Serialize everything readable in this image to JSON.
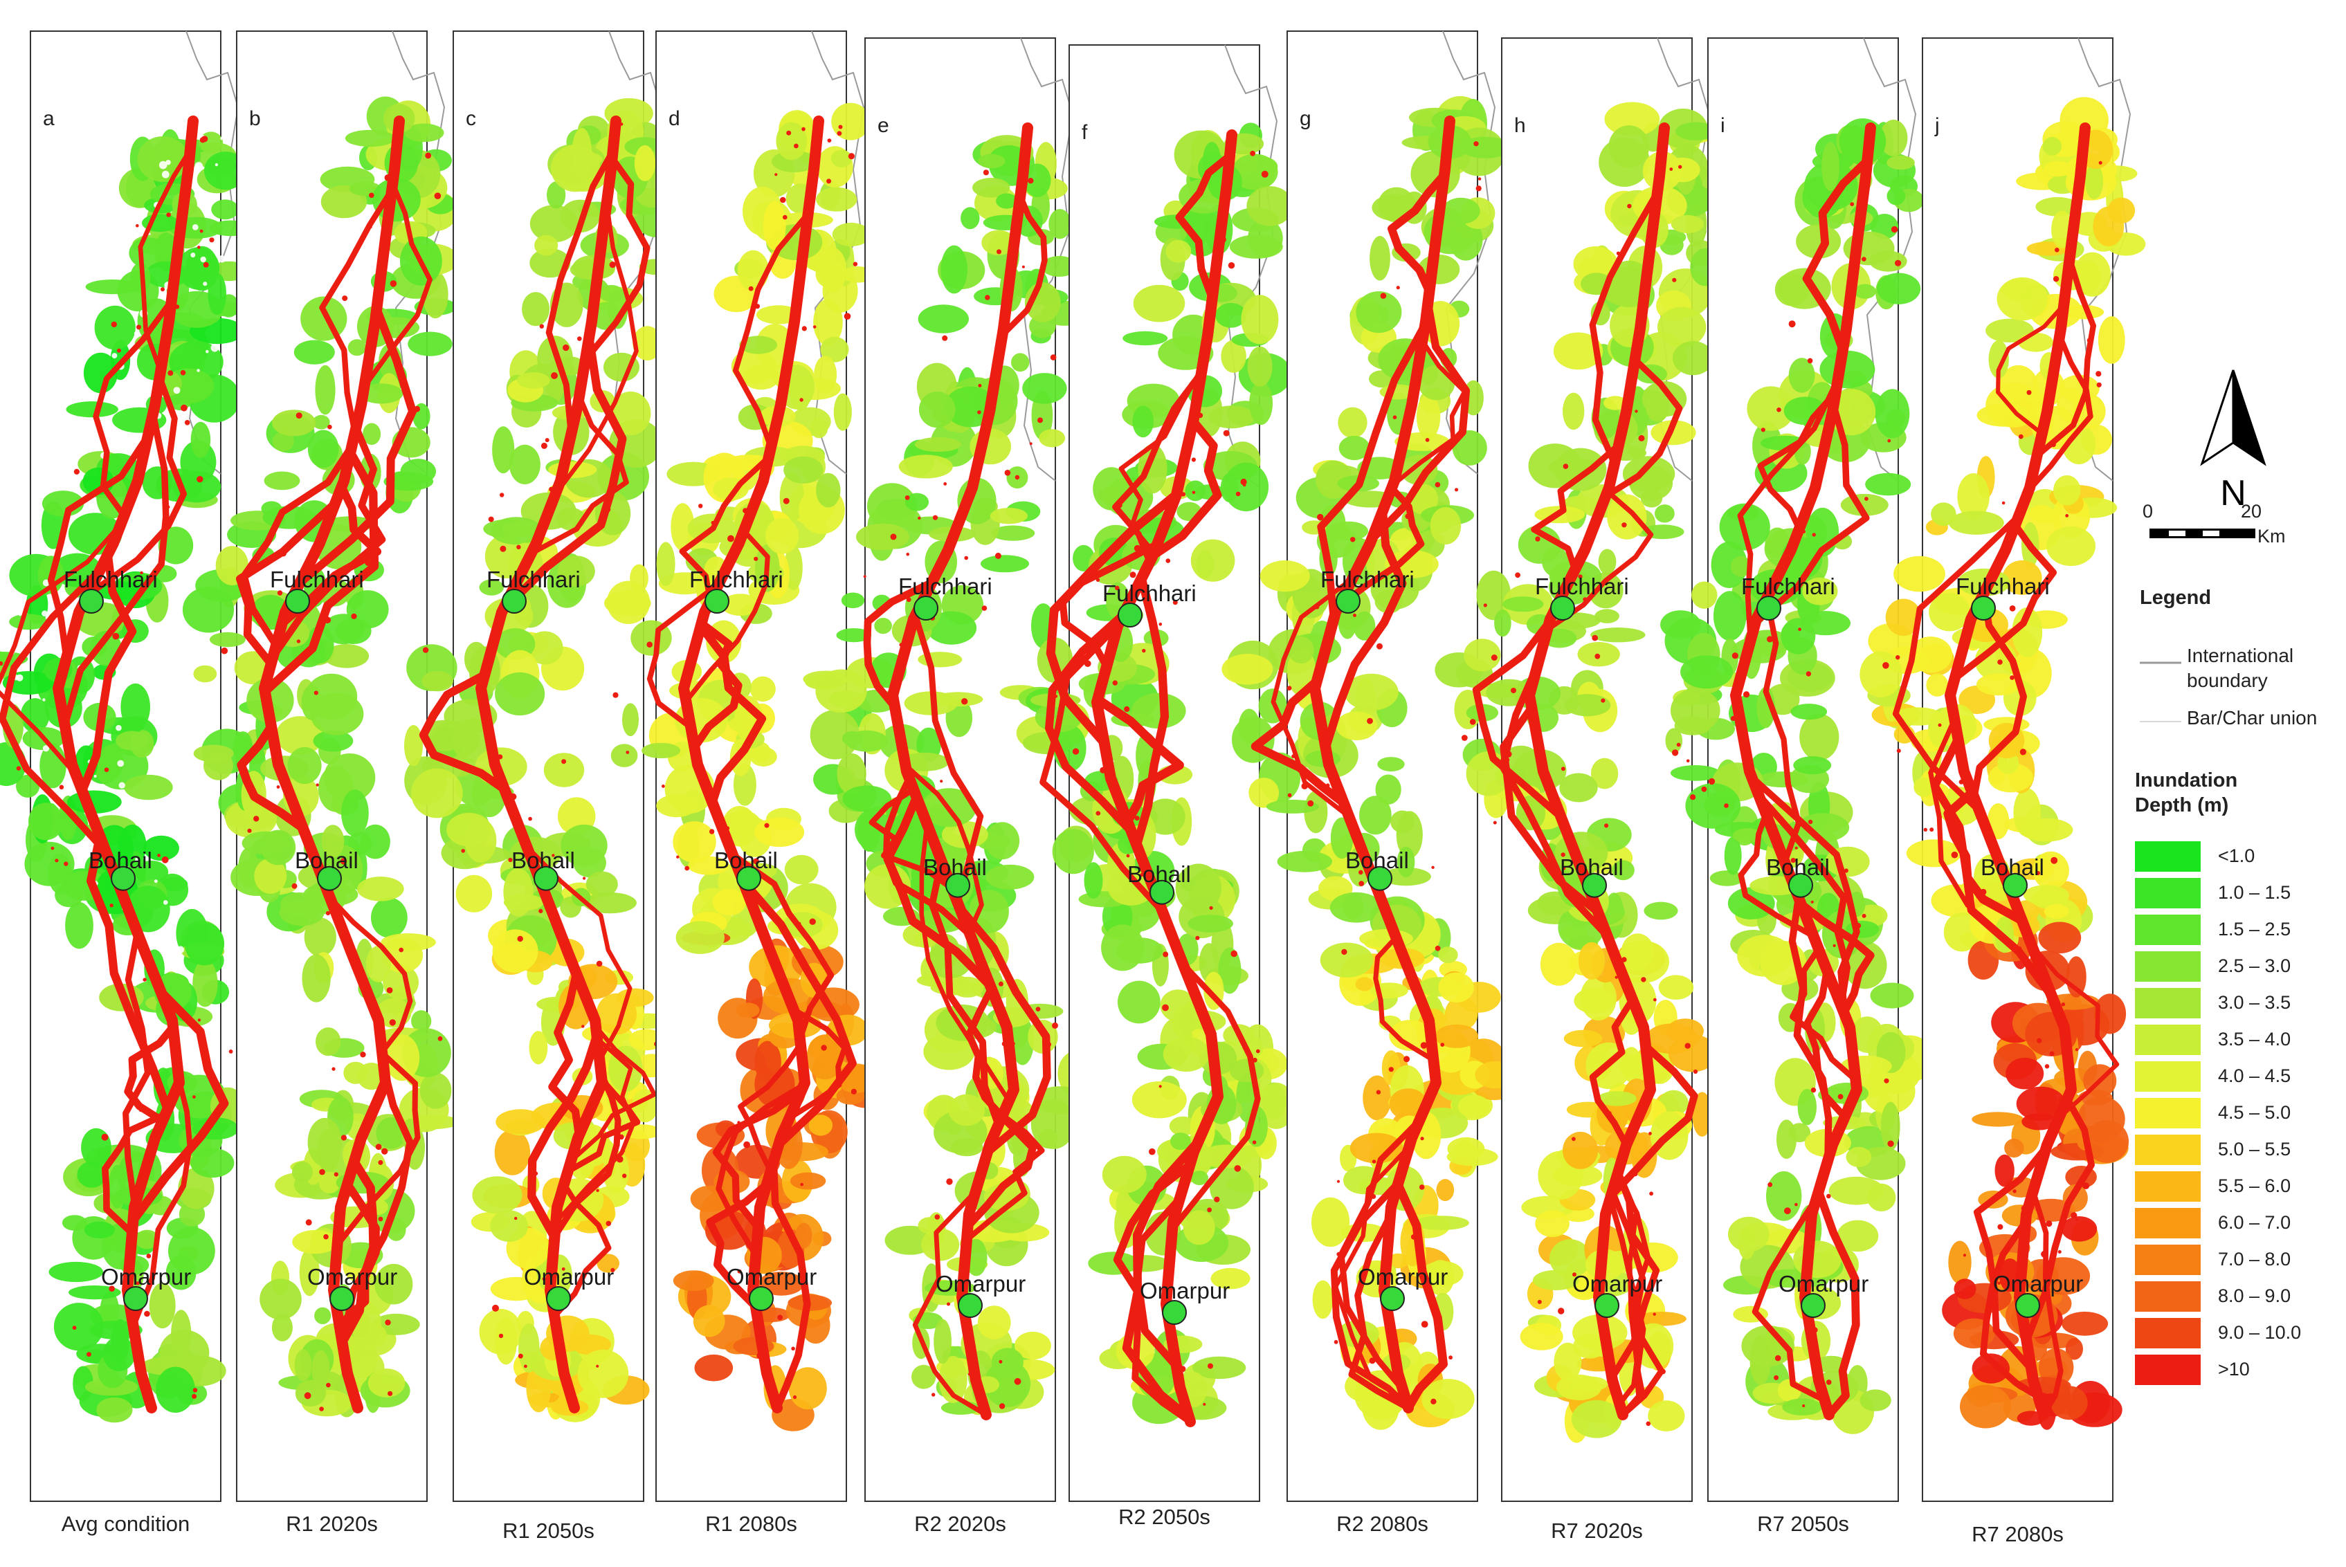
{
  "panels": [
    {
      "letter": "a",
      "caption": "Avg condition",
      "scheme": "avg"
    },
    {
      "letter": "b",
      "caption": "R1 2020s",
      "scheme": "low"
    },
    {
      "letter": "c",
      "caption": "R1 2050s",
      "scheme": "mid"
    },
    {
      "letter": "d",
      "caption": "R1 2080s",
      "scheme": "high"
    },
    {
      "letter": "e",
      "caption": "R2 2020s",
      "scheme": "low"
    },
    {
      "letter": "f",
      "caption": "R2 2050s",
      "scheme": "low"
    },
    {
      "letter": "g",
      "caption": "R2 2080s",
      "scheme": "mid"
    },
    {
      "letter": "h",
      "caption": "R7 2020s",
      "scheme": "mid"
    },
    {
      "letter": "i",
      "caption": "R7 2050s",
      "scheme": "low"
    },
    {
      "letter": "j",
      "caption": "R7 2080s",
      "scheme": "vhigh"
    }
  ],
  "places": [
    "Fulchhari",
    "Bohail",
    "Omarpur"
  ],
  "north_label": "N",
  "scale": {
    "start": "0",
    "end": "20",
    "unit": "Km"
  },
  "legend": {
    "title": "Legend",
    "international_boundary": "International boundary",
    "bar_char_union": "Bar/Char union",
    "depth_title": "Inundation Depth (m)",
    "classes": [
      {
        "label": "<1.0",
        "color": "#18e51e"
      },
      {
        "label": "1.0 – 1.5",
        "color": "#3ce626"
      },
      {
        "label": "1.5 – 2.5",
        "color": "#5fe62c"
      },
      {
        "label": "2.5 – 3.0",
        "color": "#86e631"
      },
      {
        "label": "3.0 – 3.5",
        "color": "#a6e635"
      },
      {
        "label": "3.5 – 4.0",
        "color": "#c8ee36"
      },
      {
        "label": "4.0 – 4.5",
        "color": "#e2f234"
      },
      {
        "label": "4.5 – 5.0",
        "color": "#f6f12e"
      },
      {
        "label": "5.0 – 5.5",
        "color": "#fad31f"
      },
      {
        "label": "5.5 – 6.0",
        "color": "#fbb716"
      },
      {
        "label": "6.0 – 7.0",
        "color": "#f99a12"
      },
      {
        "label": "7.0 – 8.0",
        "color": "#f67f14"
      },
      {
        "label": "8.0 – 9.0",
        "color": "#f26416"
      },
      {
        "label": "9.0 – 10.0",
        "color": "#ee4714"
      },
      {
        "label": ">10",
        "color": "#ec1e12"
      }
    ]
  },
  "colors": {
    "river": "#ec1e12",
    "boundary": "#9a9a9a",
    "frame": "#333333",
    "marker": "#36d83a"
  }
}
